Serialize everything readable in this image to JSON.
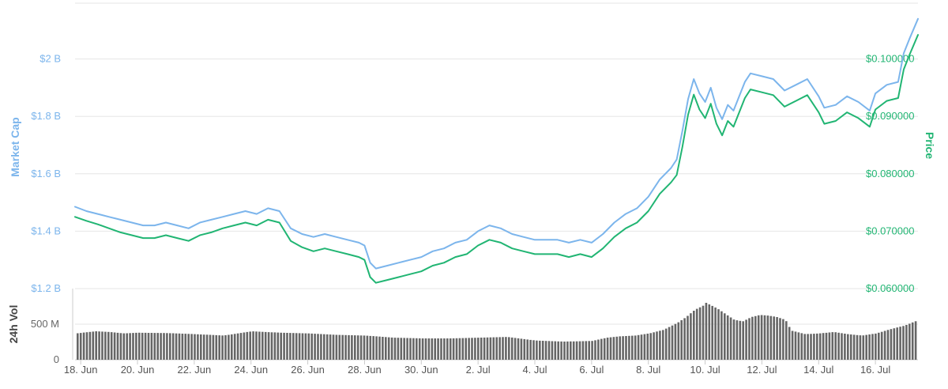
{
  "chart_data": {
    "type": "line",
    "colors": {
      "market_cap": "#7cb5ec",
      "price": "#21b573",
      "volume": "#666666",
      "grid": "#e6e6e6"
    },
    "grid": true,
    "left_axis": {
      "title": "Market Cap",
      "ticks": [
        "$1.2 B",
        "$1.4 B",
        "$1.6 B",
        "$1.8 B",
        "$2 B"
      ],
      "tick_values": [
        1.2,
        1.4,
        1.6,
        1.8,
        2.0
      ],
      "ylim": [
        1.2,
        2.2
      ]
    },
    "right_axis": {
      "title": "Price",
      "ticks": [
        "$0.060000",
        "$0.070000",
        "$0.080000",
        "$0.090000",
        "$0.100000"
      ],
      "tick_values": [
        0.06,
        0.07,
        0.08,
        0.09,
        0.1
      ],
      "ylim": [
        0.06,
        0.11
      ]
    },
    "volume_axis": {
      "title": "24h Vol",
      "ticks": [
        "0",
        "500 M"
      ],
      "tick_values": [
        0,
        500
      ],
      "ylim": [
        0,
        1000
      ]
    },
    "x_ticks": [
      "18. Jun",
      "20. Jun",
      "22. Jun",
      "24. Jun",
      "26. Jun",
      "28. Jun",
      "30. Jun",
      "2. Jul",
      "4. Jul",
      "6. Jul",
      "8. Jul",
      "10. Jul",
      "12. Jul",
      "14. Jul",
      "16. Jul"
    ],
    "x_days": [
      17.8,
      47.5
    ],
    "x_tick_days": [
      18,
      20,
      22,
      24,
      26,
      28,
      30,
      32,
      34,
      36,
      38,
      40,
      42,
      44,
      46
    ],
    "series": [
      {
        "key": "market_cap",
        "name": "Market Cap",
        "x": [
          17.8,
          18.2,
          18.6,
          19,
          19.4,
          19.8,
          20.2,
          20.6,
          21,
          21.4,
          21.8,
          22.2,
          22.6,
          23,
          23.4,
          23.8,
          24.2,
          24.6,
          25,
          25.4,
          25.8,
          26.2,
          26.6,
          27,
          27.4,
          27.8,
          28,
          28.2,
          28.4,
          28.8,
          29.2,
          29.6,
          30,
          30.4,
          30.8,
          31.2,
          31.6,
          32,
          32.4,
          32.8,
          33.2,
          33.6,
          34,
          34.4,
          34.8,
          35.2,
          35.6,
          36,
          36.4,
          36.8,
          37.2,
          37.6,
          38,
          38.4,
          38.8,
          39,
          39.2,
          39.4,
          39.6,
          39.8,
          40,
          40.2,
          40.4,
          40.6,
          40.8,
          41,
          41.2,
          41.4,
          41.6,
          42,
          42.4,
          42.8,
          43.2,
          43.6,
          44,
          44.2,
          44.6,
          45,
          45.4,
          45.8,
          46,
          46.4,
          46.8,
          47,
          47.2,
          47.5
        ],
        "y": [
          1.485,
          1.47,
          1.46,
          1.45,
          1.44,
          1.43,
          1.42,
          1.42,
          1.43,
          1.42,
          1.41,
          1.43,
          1.44,
          1.45,
          1.46,
          1.47,
          1.46,
          1.48,
          1.47,
          1.41,
          1.39,
          1.38,
          1.39,
          1.38,
          1.37,
          1.36,
          1.35,
          1.29,
          1.27,
          1.28,
          1.29,
          1.3,
          1.31,
          1.33,
          1.34,
          1.36,
          1.37,
          1.4,
          1.42,
          1.41,
          1.39,
          1.38,
          1.37,
          1.37,
          1.37,
          1.36,
          1.37,
          1.36,
          1.39,
          1.43,
          1.46,
          1.48,
          1.52,
          1.58,
          1.62,
          1.65,
          1.75,
          1.86,
          1.93,
          1.88,
          1.85,
          1.9,
          1.83,
          1.79,
          1.84,
          1.82,
          1.87,
          1.92,
          1.95,
          1.94,
          1.93,
          1.89,
          1.91,
          1.93,
          1.87,
          1.83,
          1.84,
          1.87,
          1.85,
          1.82,
          1.88,
          1.91,
          1.92,
          2.02,
          2.07,
          2.14
        ]
      },
      {
        "key": "price",
        "name": "Price",
        "x": [
          17.8,
          18.2,
          18.6,
          19,
          19.4,
          19.8,
          20.2,
          20.6,
          21,
          21.4,
          21.8,
          22.2,
          22.6,
          23,
          23.4,
          23.8,
          24.2,
          24.6,
          25,
          25.4,
          25.8,
          26.2,
          26.6,
          27,
          27.4,
          27.8,
          28,
          28.2,
          28.4,
          28.8,
          29.2,
          29.6,
          30,
          30.4,
          30.8,
          31.2,
          31.6,
          32,
          32.4,
          32.8,
          33.2,
          33.6,
          34,
          34.4,
          34.8,
          35.2,
          35.6,
          36,
          36.4,
          36.8,
          37.2,
          37.6,
          38,
          38.4,
          38.8,
          39,
          39.2,
          39.4,
          39.6,
          39.8,
          40,
          40.2,
          40.4,
          40.6,
          40.8,
          41,
          41.2,
          41.4,
          41.6,
          42,
          42.4,
          42.8,
          43.2,
          43.6,
          44,
          44.2,
          44.6,
          45,
          45.4,
          45.8,
          46,
          46.4,
          46.8,
          47,
          47.2,
          47.5
        ],
        "y": [
          0.0725,
          0.0718,
          0.0712,
          0.0705,
          0.0698,
          0.0693,
          0.0688,
          0.0688,
          0.0693,
          0.0688,
          0.0683,
          0.0693,
          0.0698,
          0.0705,
          0.071,
          0.0715,
          0.071,
          0.072,
          0.0715,
          0.0683,
          0.0672,
          0.0665,
          0.067,
          0.0665,
          0.066,
          0.0655,
          0.065,
          0.062,
          0.061,
          0.0615,
          0.062,
          0.0625,
          0.063,
          0.064,
          0.0645,
          0.0655,
          0.066,
          0.0675,
          0.0685,
          0.068,
          0.067,
          0.0665,
          0.066,
          0.066,
          0.066,
          0.0655,
          0.066,
          0.0655,
          0.067,
          0.069,
          0.0705,
          0.0715,
          0.0735,
          0.0765,
          0.0785,
          0.0798,
          0.0847,
          0.0903,
          0.0938,
          0.0912,
          0.0897,
          0.0922,
          0.0887,
          0.0867,
          0.0892,
          0.0882,
          0.0907,
          0.0932,
          0.0947,
          0.0942,
          0.0937,
          0.0917,
          0.0927,
          0.0937,
          0.0907,
          0.0887,
          0.0892,
          0.0907,
          0.0897,
          0.0882,
          0.0912,
          0.0927,
          0.0932,
          0.0982,
          0.1007,
          0.1042
        ]
      }
    ],
    "volume": {
      "name": "24h Vol",
      "x": [
        17.8,
        18.5,
        19,
        19.5,
        20,
        21,
        22,
        23,
        24,
        25,
        26,
        27,
        28,
        29,
        30,
        31,
        32,
        33,
        34,
        35,
        36,
        36.5,
        37,
        37.5,
        38,
        38.5,
        39,
        39.3,
        39.6,
        39.9,
        40,
        40.2,
        40.4,
        40.7,
        41,
        41.3,
        41.6,
        41.9,
        42.2,
        42.5,
        42.8,
        43,
        43.5,
        44,
        44.5,
        45,
        45.5,
        46,
        46.5,
        47,
        47.5
      ],
      "y": [
        370,
        400,
        390,
        370,
        380,
        375,
        360,
        340,
        400,
        380,
        370,
        350,
        340,
        310,
        300,
        300,
        310,
        320,
        270,
        255,
        265,
        310,
        330,
        340,
        370,
        420,
        520,
        600,
        700,
        760,
        800,
        760,
        720,
        640,
        560,
        540,
        600,
        630,
        620,
        600,
        560,
        410,
        360,
        370,
        390,
        360,
        340,
        370,
        430,
        480,
        560
      ]
    }
  }
}
